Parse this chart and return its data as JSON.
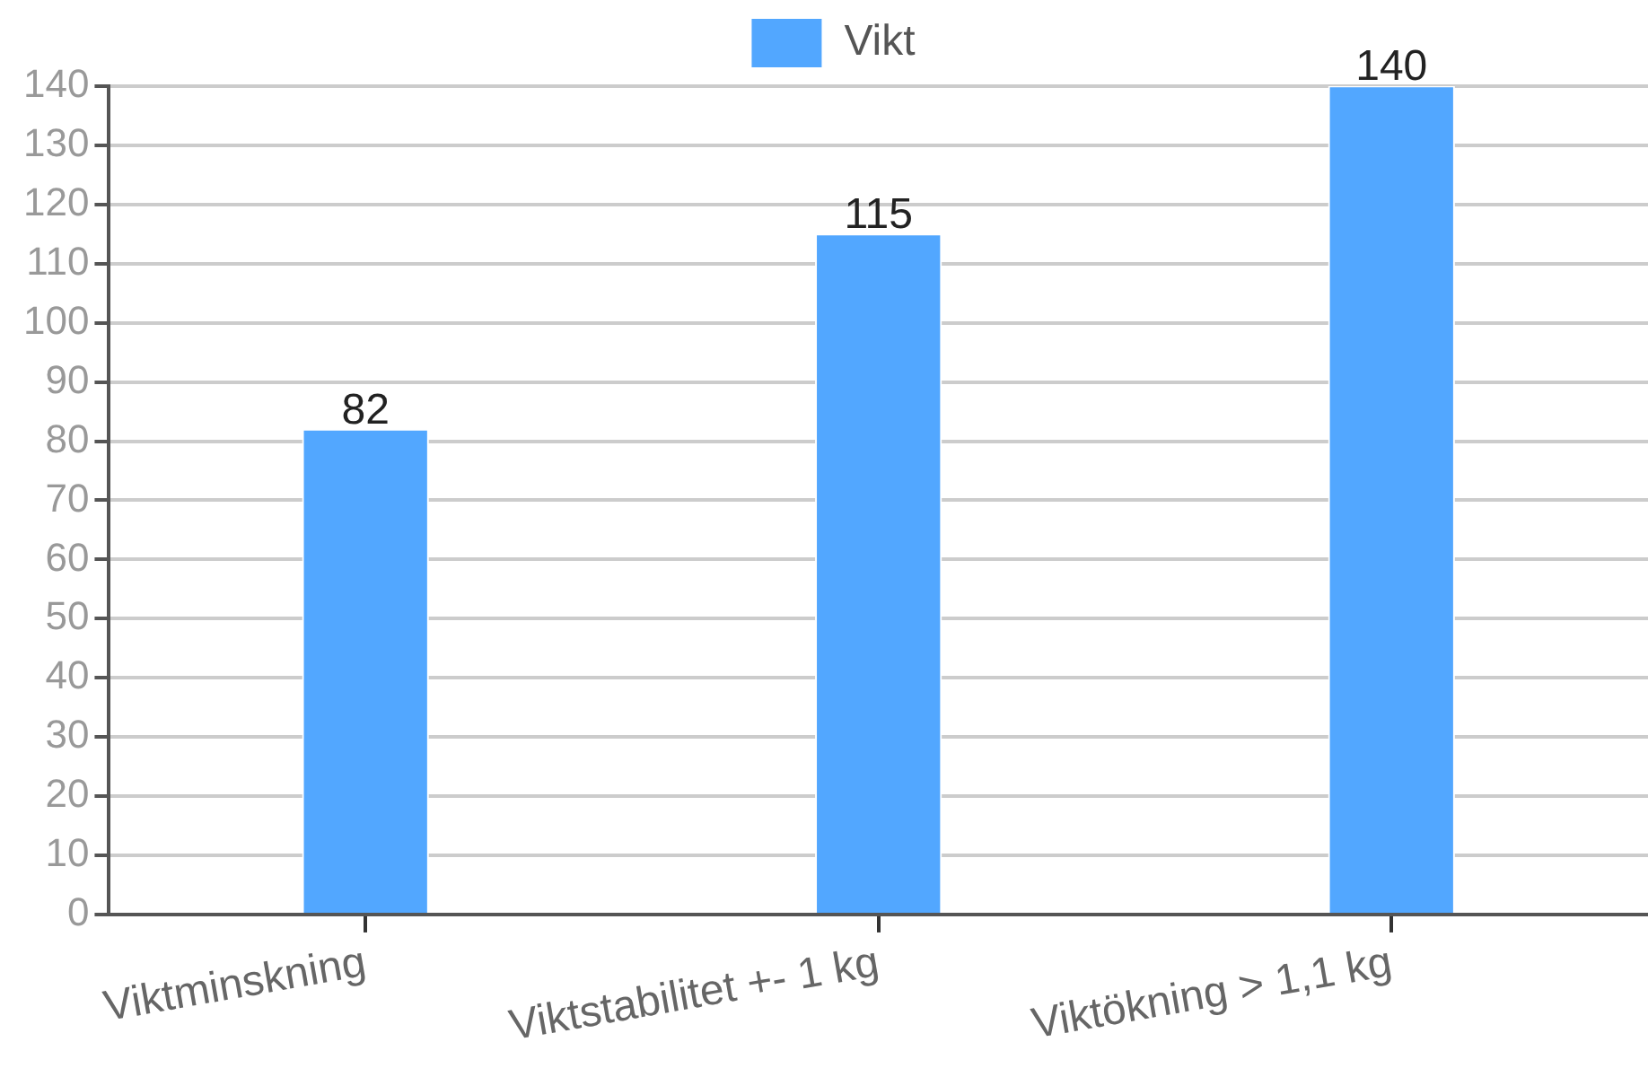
{
  "chart_data": {
    "type": "bar",
    "categories": [
      "Viktminskning",
      "Viktstabilitet +- 1 kg",
      "Viktökning > 1,1 kg"
    ],
    "series": [
      {
        "name": "Vikt",
        "color": "#52a7ff",
        "values": [
          82,
          115,
          140
        ]
      }
    ],
    "ylim": [
      0,
      140
    ],
    "yticks": [
      0,
      10,
      20,
      30,
      40,
      50,
      60,
      70,
      80,
      90,
      100,
      110,
      120,
      130,
      140
    ],
    "grid": "y",
    "legend": "top",
    "data_labels": true
  }
}
